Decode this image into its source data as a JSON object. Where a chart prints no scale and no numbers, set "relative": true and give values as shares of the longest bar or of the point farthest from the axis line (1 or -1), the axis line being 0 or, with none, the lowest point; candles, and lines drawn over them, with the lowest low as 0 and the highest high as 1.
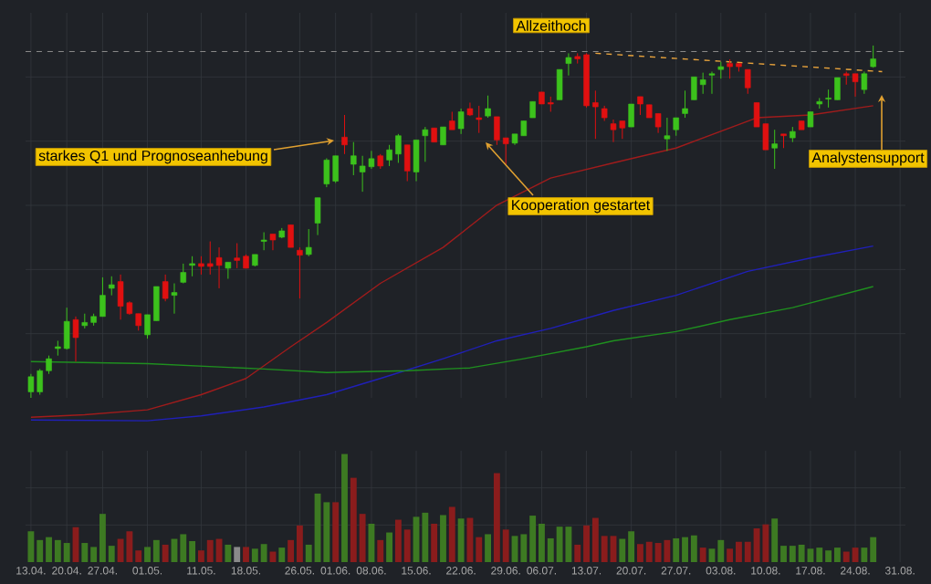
{
  "chart_data": [
    {
      "type": "candlestick",
      "relative": true,
      "grid": true,
      "tick_labels": false,
      "categories": [
        "13.04.",
        null,
        null,
        null,
        "20.04.",
        null,
        null,
        null,
        "27.04.",
        null,
        null,
        null,
        null,
        "01.05.",
        null,
        null,
        null,
        null,
        null,
        "11.05.",
        null,
        null,
        null,
        null,
        "18.05.",
        null,
        null,
        null,
        null,
        null,
        "26.05.",
        null,
        null,
        null,
        "01.06.",
        null,
        null,
        null,
        "08.06.",
        null,
        null,
        null,
        null,
        "15.06.",
        null,
        null,
        null,
        null,
        "22.06.",
        null,
        null,
        null,
        null,
        "29.06.",
        null,
        null,
        null,
        "06.07.",
        null,
        null,
        null,
        null,
        "13.07.",
        null,
        null,
        null,
        null,
        "20.07.",
        null,
        null,
        null,
        null,
        "27.07.",
        null,
        null,
        null,
        null,
        "03.08.",
        null,
        null,
        null,
        null,
        "10.08.",
        null,
        null,
        null,
        null,
        "17.08.",
        null,
        null,
        null,
        null,
        "24.08.",
        null,
        null,
        null,
        null,
        "31.08."
      ],
      "ohlc": [
        [
          0.017,
          0.068,
          0,
          0.06
        ],
        [
          0.017,
          0.082,
          0.009,
          0.077
        ],
        [
          0.077,
          0.12,
          0.068,
          0.111
        ],
        [
          0.14,
          0.162,
          0.12,
          0.145
        ],
        [
          0.14,
          0.256,
          0.137,
          0.217
        ],
        [
          0.222,
          0.231,
          0.103,
          0.171
        ],
        [
          0.205,
          0.239,
          0.197,
          0.214
        ],
        [
          0.214,
          0.239,
          0.205,
          0.231
        ],
        [
          0.231,
          0.342,
          0.231,
          0.291
        ],
        [
          0.311,
          0.345,
          0.291,
          0.321
        ],
        [
          0.33,
          0.35,
          0.222,
          0.26
        ],
        [
          0.27,
          0.274,
          0.236,
          0.239
        ],
        [
          0.239,
          0.239,
          0.191,
          0.205
        ],
        [
          0.179,
          0.236,
          0.168,
          0.236
        ],
        [
          0.219,
          0.316,
          0.219,
          0.316
        ],
        [
          0.33,
          0.35,
          0.274,
          0.282
        ],
        [
          0.291,
          0.325,
          0.239,
          0.299
        ],
        [
          0.328,
          0.381,
          0.325,
          0.356
        ],
        [
          0.376,
          0.402,
          0.345,
          0.381
        ],
        [
          0.381,
          0.402,
          0.35,
          0.373
        ],
        [
          0.381,
          0.444,
          0.35,
          0.373
        ],
        [
          0.398,
          0.427,
          0.311,
          0.376
        ],
        [
          0.368,
          0.385,
          0.338,
          0.385
        ],
        [
          0.397,
          0.439,
          0.368,
          0.39
        ],
        [
          0.402,
          0.407,
          0.368,
          0.368
        ],
        [
          0.376,
          0.407,
          0.373,
          0.407
        ],
        [
          0.444,
          0.47,
          0.419,
          0.448
        ],
        [
          0.465,
          0.465,
          0.419,
          0.448
        ],
        [
          0.456,
          0.482,
          0.453,
          0.474
        ],
        [
          0.491,
          0.491,
          0.427,
          0.427
        ],
        [
          0.419,
          0.427,
          0.282,
          0.405
        ],
        [
          0.407,
          0.479,
          0.402,
          0.427
        ],
        [
          0.496,
          0.568,
          0.462,
          0.568
        ],
        [
          0.607,
          0.68,
          0.598,
          0.675
        ],
        [
          0.615,
          0.687,
          0.61,
          0.687
        ],
        [
          0.74,
          0.803,
          0.692,
          0.718
        ],
        [
          0.663,
          0.726,
          0.632,
          0.687
        ],
        [
          0.641,
          0.687,
          0.585,
          0.658
        ],
        [
          0.656,
          0.701,
          0.65,
          0.679
        ],
        [
          0.687,
          0.692,
          0.65,
          0.658
        ],
        [
          0.675,
          0.718,
          0.658,
          0.704
        ],
        [
          0.692,
          0.749,
          0.667,
          0.744
        ],
        [
          0.718,
          0.718,
          0.615,
          0.644
        ],
        [
          0.641,
          0.732,
          0.615,
          0.732
        ],
        [
          0.744,
          0.769,
          0.67,
          0.761
        ],
        [
          0.766,
          0.766,
          0.726,
          0.726
        ],
        [
          0.718,
          0.769,
          0.718,
          0.769
        ],
        [
          0.786,
          0.812,
          0.761,
          0.761
        ],
        [
          0.764,
          0.821,
          0.749,
          0.812
        ],
        [
          0.821,
          0.838,
          0.8,
          0.803
        ],
        [
          0.795,
          0.829,
          0.752,
          0.79
        ],
        [
          0.8,
          0.858,
          0.795,
          0.821
        ],
        [
          0.798,
          0.798,
          0.718,
          0.732
        ],
        [
          0.738,
          0.738,
          0.663,
          0.721
        ],
        [
          0.723,
          0.749,
          0.718,
          0.749
        ],
        [
          0.744,
          0.786,
          0.744,
          0.786
        ],
        [
          0.795,
          0.841,
          0.795,
          0.841
        ],
        [
          0.868,
          0.868,
          0.834,
          0.834
        ],
        [
          0.838,
          0.855,
          0.812,
          0.834
        ],
        [
          0.846,
          0.932,
          0.846,
          0.932
        ],
        [
          0.949,
          0.978,
          0.915,
          0.966
        ],
        [
          0.969,
          0.978,
          0.949,
          0.962
        ],
        [
          0.974,
          0.978,
          0.824,
          0.829
        ],
        [
          0.838,
          0.872,
          0.735,
          0.826
        ],
        [
          0.821,
          0.829,
          0.786,
          0.795
        ],
        [
          0.778,
          0.79,
          0.726,
          0.761
        ],
        [
          0.786,
          0.786,
          0.735,
          0.766
        ],
        [
          0.769,
          0.834,
          0.769,
          0.834
        ],
        [
          0.855,
          0.855,
          0.803,
          0.834
        ],
        [
          0.832,
          0.832,
          0.795,
          0.795
        ],
        [
          0.807,
          0.807,
          0.752,
          0.769
        ],
        [
          0.735,
          0.795,
          0.701,
          0.744
        ],
        [
          0.761,
          0.795,
          0.744,
          0.795
        ],
        [
          0.807,
          0.872,
          0.795,
          0.821
        ],
        [
          0.846,
          0.911,
          0.846,
          0.911
        ],
        [
          0.889,
          0.923,
          0.863,
          0.903
        ],
        [
          0.916,
          0.926,
          0.863,
          0.92
        ],
        [
          0.932,
          0.954,
          0.906,
          0.94
        ],
        [
          0.949,
          0.961,
          0.906,
          0.94
        ],
        [
          0.949,
          0.949,
          0.926,
          0.94
        ],
        [
          0.932,
          0.932,
          0.863,
          0.88
        ],
        [
          0.838,
          0.838,
          0.769,
          0.769
        ],
        [
          0.778,
          0.778,
          0.704,
          0.704
        ],
        [
          0.709,
          0.761,
          0.65,
          0.721
        ],
        [
          0.749,
          0.749,
          0.709,
          0.744
        ],
        [
          0.738,
          0.769,
          0.726,
          0.756
        ],
        [
          0.786,
          0.786,
          0.761,
          0.761
        ],
        [
          0.769,
          0.812,
          0.769,
          0.812
        ],
        [
          0.834,
          0.851,
          0.821,
          0.841
        ],
        [
          0.848,
          0.875,
          0.824,
          0.851
        ],
        [
          0.846,
          0.909,
          0.846,
          0.909
        ],
        [
          0.92,
          0.926,
          0.889,
          0.915
        ],
        [
          0.92,
          0.92,
          0.855,
          0.897
        ],
        [
          0.875,
          0.926,
          0.863,
          0.92
        ],
        [
          0.94,
          1.0,
          0.937,
          0.962
        ],
        null,
        null,
        null
      ],
      "colors": [
        "#3cc21c",
        "#3cc21c",
        "#3cc21c",
        "#3cc21c",
        "#3cc21c",
        "#e01010",
        "#3cc21c",
        "#3cc21c",
        "#3cc21c",
        "#3cc21c",
        "#e01010",
        "#e01010",
        "#e01010",
        "#3cc21c",
        "#3cc21c",
        "#e01010",
        "#3cc21c",
        "#3cc21c",
        "#3cc21c",
        "#e01010",
        "#e01010",
        "#e01010",
        "#3cc21c",
        "#e01010",
        "#e01010",
        "#3cc21c",
        "#3cc21c",
        "#e01010",
        "#3cc21c",
        "#e01010",
        "#e01010",
        "#3cc21c",
        "#3cc21c",
        "#3cc21c",
        "#3cc21c",
        "#e01010",
        "#3cc21c",
        "#3cc21c",
        "#3cc21c",
        "#e01010",
        "#3cc21c",
        "#3cc21c",
        "#e01010",
        "#3cc21c",
        "#3cc21c",
        "#e01010",
        "#3cc21c",
        "#e01010",
        "#3cc21c",
        "#e01010",
        "#e01010",
        "#3cc21c",
        "#e01010",
        "#e01010",
        "#3cc21c",
        "#3cc21c",
        "#3cc21c",
        "#e01010",
        "#e01010",
        "#3cc21c",
        "#3cc21c",
        "#e01010",
        "#e01010",
        "#e01010",
        "#e01010",
        "#e01010",
        "#e01010",
        "#3cc21c",
        "#e01010",
        "#e01010",
        "#e01010",
        "#3cc21c",
        "#3cc21c",
        "#3cc21c",
        "#3cc21c",
        "#3cc21c",
        "#3cc21c",
        "#3cc21c",
        "#e01010",
        "#e01010",
        "#e01010",
        "#e01010",
        "#e01010",
        "#3cc21c",
        "#e01010",
        "#3cc21c",
        "#e01010",
        "#3cc21c",
        "#3cc21c",
        "#3cc21c",
        "#3cc21c",
        "#e01010",
        "#e01010",
        "#3cc21c",
        "#3cc21c",
        null,
        null,
        null
      ],
      "series": [
        {
          "type": "line",
          "color": "#a01c1c",
          "values": [
            -0.055,
            null,
            null,
            null,
            null,
            null,
            -0.048,
            null,
            null,
            null,
            null,
            null,
            null,
            -0.034,
            null,
            null,
            null,
            null,
            null,
            0.009,
            null,
            null,
            null,
            null,
            0.055,
            null,
            null,
            null,
            null,
            0.145,
            null,
            null,
            null,
            0.214,
            null,
            null,
            null,
            null,
            null,
            0.325,
            null,
            null,
            null,
            null,
            null,
            null,
            0.427,
            null,
            null,
            null,
            null,
            null,
            0.547,
            null,
            null,
            null,
            null,
            null,
            0.624,
            null,
            null,
            null,
            null,
            null,
            null,
            0.667,
            null,
            null,
            null,
            null,
            null,
            null,
            0.709,
            null,
            null,
            null,
            null,
            null,
            null,
            null,
            null,
            0.795,
            null,
            null,
            null,
            null,
            null,
            0.803,
            null,
            null,
            null,
            null,
            null,
            null,
            0.829,
            null,
            null,
            null
          ]
        },
        {
          "type": "line",
          "color": "#2020b8",
          "values": [
            -0.063,
            null,
            null,
            null,
            null,
            null,
            null,
            null,
            null,
            null,
            null,
            null,
            null,
            -0.065,
            null,
            null,
            null,
            null,
            null,
            -0.051,
            null,
            null,
            null,
            null,
            null,
            null,
            -0.026,
            null,
            null,
            null,
            null,
            null,
            null,
            0.009,
            null,
            null,
            null,
            null,
            null,
            0.055,
            null,
            null,
            null,
            null,
            null,
            null,
            0.111,
            null,
            null,
            null,
            null,
            null,
            0.162,
            null,
            null,
            null,
            null,
            null,
            0.197,
            null,
            null,
            null,
            null,
            null,
            null,
            0.248,
            null,
            null,
            null,
            null,
            null,
            null,
            0.291,
            null,
            null,
            null,
            null,
            null,
            null,
            null,
            0.359,
            null,
            null,
            null,
            null,
            null,
            null,
            0.397,
            null,
            null,
            null,
            null,
            null,
            null,
            0.431,
            null,
            null,
            null
          ]
        },
        {
          "type": "line",
          "color": "#1f8f1f",
          "values": [
            0.103,
            null,
            null,
            null,
            null,
            null,
            null,
            null,
            null,
            null,
            null,
            null,
            null,
            0.097,
            null,
            null,
            null,
            null,
            null,
            null,
            null,
            null,
            null,
            null,
            null,
            null,
            0.082,
            null,
            null,
            null,
            null,
            null,
            null,
            0.072,
            null,
            null,
            null,
            null,
            null,
            null,
            null,
            null,
            0.077,
            null,
            null,
            null,
            null,
            null,
            null,
            0.085,
            null,
            null,
            null,
            null,
            null,
            0.111,
            null,
            null,
            null,
            null,
            null,
            null,
            0.145,
            null,
            null,
            0.162,
            null,
            null,
            null,
            null,
            null,
            null,
            0.188,
            null,
            null,
            null,
            null,
            null,
            0.222,
            null,
            null,
            null,
            null,
            null,
            null,
            0.256,
            null,
            null,
            null,
            null,
            null,
            null,
            null,
            null,
            0.316,
            null,
            null,
            null
          ]
        },
        {
          "type": "line",
          "color": "#e8a33c",
          "line_style": "dashed",
          "values": [
            null,
            null,
            null,
            null,
            null,
            null,
            null,
            null,
            null,
            null,
            null,
            null,
            null,
            null,
            null,
            null,
            null,
            null,
            null,
            null,
            null,
            null,
            null,
            null,
            null,
            null,
            null,
            null,
            null,
            null,
            null,
            null,
            null,
            null,
            null,
            null,
            null,
            null,
            null,
            null,
            null,
            null,
            null,
            null,
            null,
            null,
            null,
            null,
            null,
            null,
            null,
            null,
            null,
            null,
            null,
            null,
            null,
            null,
            null,
            null,
            null,
            null,
            null,
            0.978,
            null,
            null,
            null,
            null,
            null,
            null,
            null,
            null,
            null,
            null,
            null,
            null,
            null,
            null,
            null,
            null,
            null,
            null,
            null,
            null,
            null,
            null,
            null,
            null,
            null,
            null,
            null,
            null,
            null,
            null,
            null,
            0.926,
            null,
            null
          ]
        }
      ],
      "ref_lines": [
        {
          "axis": "y",
          "value": 0.983,
          "color": "#8c8c8c",
          "line_style": "dashed"
        }
      ],
      "annotations": [
        "starkes Q1 und Prognoseanhebung",
        "Allzeithoch",
        "Kooperation gestartet",
        "Analystensupport"
      ]
    },
    {
      "type": "bar",
      "relative": true,
      "grid": true,
      "tick_labels": "x",
      "categories": [
        "13.04.",
        null,
        null,
        null,
        "20.04.",
        null,
        null,
        null,
        "27.04.",
        null,
        null,
        null,
        null,
        "01.05.",
        null,
        null,
        null,
        null,
        null,
        "11.05.",
        null,
        null,
        null,
        null,
        "18.05.",
        null,
        null,
        null,
        null,
        null,
        "26.05.",
        null,
        null,
        null,
        "01.06.",
        null,
        null,
        null,
        "08.06.",
        null,
        null,
        null,
        null,
        "15.06.",
        null,
        null,
        null,
        null,
        "22.06.",
        null,
        null,
        null,
        null,
        "29.06.",
        null,
        null,
        null,
        "06.07.",
        null,
        null,
        null,
        null,
        "13.07.",
        null,
        null,
        null,
        null,
        "20.07.",
        null,
        null,
        null,
        null,
        "27.07.",
        null,
        null,
        null,
        null,
        "03.08.",
        null,
        null,
        null,
        null,
        "10.08.",
        null,
        null,
        null,
        null,
        "17.08.",
        null,
        null,
        null,
        null,
        "24.08.",
        null,
        null,
        null,
        null,
        "31.08."
      ],
      "values": [
        0.285,
        0.204,
        0.231,
        0.204,
        0.177,
        0.323,
        0.177,
        0.14,
        0.446,
        0.151,
        0.215,
        0.285,
        0.108,
        0.14,
        0.204,
        0.161,
        0.215,
        0.258,
        0.194,
        0.108,
        0.204,
        0.215,
        0.161,
        0.14,
        0.14,
        0.124,
        0.167,
        0.097,
        0.134,
        0.204,
        0.339,
        0.161,
        0.634,
        0.554,
        0.554,
        1.0,
        0.78,
        0.446,
        0.355,
        0.204,
        0.274,
        0.392,
        0.301,
        0.419,
        0.457,
        0.355,
        0.435,
        0.511,
        0.403,
        0.409,
        0.231,
        0.258,
        0.823,
        0.301,
        0.242,
        0.258,
        0.43,
        0.355,
        0.22,
        0.328,
        0.328,
        0.161,
        0.339,
        0.409,
        0.242,
        0.242,
        0.215,
        0.285,
        0.167,
        0.188,
        0.177,
        0.204,
        0.22,
        0.231,
        0.247,
        0.134,
        0.124,
        0.204,
        0.124,
        0.188,
        0.188,
        0.312,
        0.349,
        0.403,
        0.151,
        0.151,
        0.161,
        0.124,
        0.134,
        0.108,
        0.134,
        0.097,
        0.134,
        0.134,
        0.231,
        null,
        null,
        null
      ],
      "colors": [
        "#3d7a22",
        "#3d7a22",
        "#3d7a22",
        "#3d7a22",
        "#3d7a22",
        "#8a1c1c",
        "#3d7a22",
        "#3d7a22",
        "#3d7a22",
        "#3d7a22",
        "#8a1c1c",
        "#8a1c1c",
        "#8a1c1c",
        "#3d7a22",
        "#3d7a22",
        "#8a1c1c",
        "#3d7a22",
        "#3d7a22",
        "#3d7a22",
        "#8a1c1c",
        "#8a1c1c",
        "#8a1c1c",
        "#3d7a22",
        "#8a8a8a",
        "#8a1c1c",
        "#3d7a22",
        "#3d7a22",
        "#8a1c1c",
        "#3d7a22",
        "#8a1c1c",
        "#8a1c1c",
        "#3d7a22",
        "#3d7a22",
        "#3d7a22",
        "#8a1c1c",
        "#3d7a22",
        "#8a1c1c",
        "#8a1c1c",
        "#3d7a22",
        "#8a1c1c",
        "#3d7a22",
        "#8a1c1c",
        "#8a1c1c",
        "#3d7a22",
        "#3d7a22",
        "#8a1c1c",
        "#3d7a22",
        "#8a1c1c",
        "#3d7a22",
        "#8a1c1c",
        "#8a1c1c",
        "#3d7a22",
        "#8a1c1c",
        "#8a1c1c",
        "#3d7a22",
        "#3d7a22",
        "#3d7a22",
        "#3d7a22",
        "#3d7a22",
        "#3d7a22",
        "#3d7a22",
        "#8a1c1c",
        "#8a1c1c",
        "#8a1c1c",
        "#8a1c1c",
        "#8a1c1c",
        "#3d7a22",
        "#3d7a22",
        "#8a1c1c",
        "#8a1c1c",
        "#8a1c1c",
        "#8a1c1c",
        "#3d7a22",
        "#3d7a22",
        "#3d7a22",
        "#8a1c1c",
        "#3d7a22",
        "#3d7a22",
        "#8a1c1c",
        "#8a1c1c",
        "#8a1c1c",
        "#8a1c1c",
        "#8a1c1c",
        "#3d7a22",
        "#3d7a22",
        "#3d7a22",
        "#3d7a22",
        "#3d7a22",
        "#3d7a22",
        "#3d7a22",
        "#3d7a22",
        "#8a1c1c",
        "#8a1c1c",
        "#3d7a22",
        "#3d7a22",
        null,
        null,
        null
      ]
    }
  ]
}
